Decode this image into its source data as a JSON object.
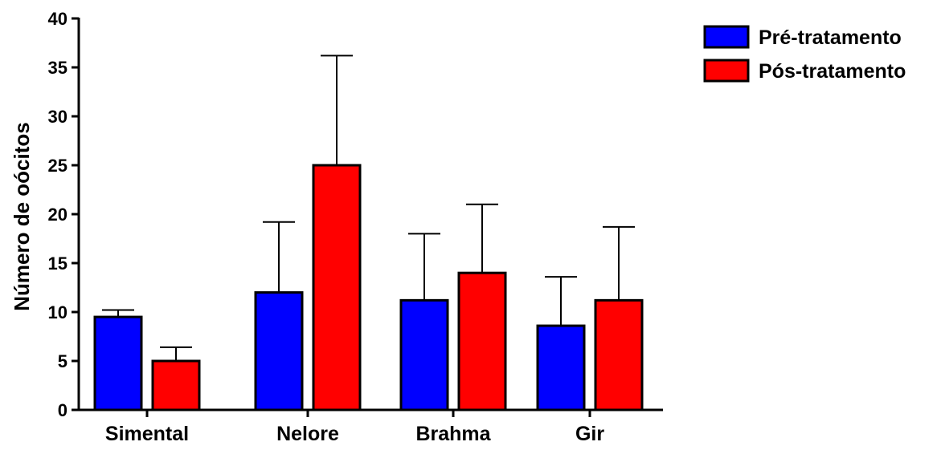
{
  "chart_data": {
    "type": "bar",
    "ylabel": "Número de oócitos",
    "xlabel": "",
    "ylim": [
      0,
      40
    ],
    "yticks": [
      0,
      5,
      10,
      15,
      20,
      25,
      30,
      35,
      40
    ],
    "categories": [
      "Simental",
      "Nelore",
      "Brahma",
      "Gir"
    ],
    "series": [
      {
        "name": "Pré-tratamento",
        "color": "#0000ff",
        "values": [
          9.5,
          12.0,
          11.2,
          8.6
        ],
        "errors": [
          0.7,
          7.2,
          6.8,
          5.0
        ]
      },
      {
        "name": "Pós-tratamento",
        "color": "#ff0000",
        "values": [
          5.0,
          25.0,
          14.0,
          11.2
        ],
        "errors": [
          1.4,
          11.2,
          7.0,
          7.5
        ]
      }
    ],
    "legend_position": "top-right",
    "grid": false
  }
}
